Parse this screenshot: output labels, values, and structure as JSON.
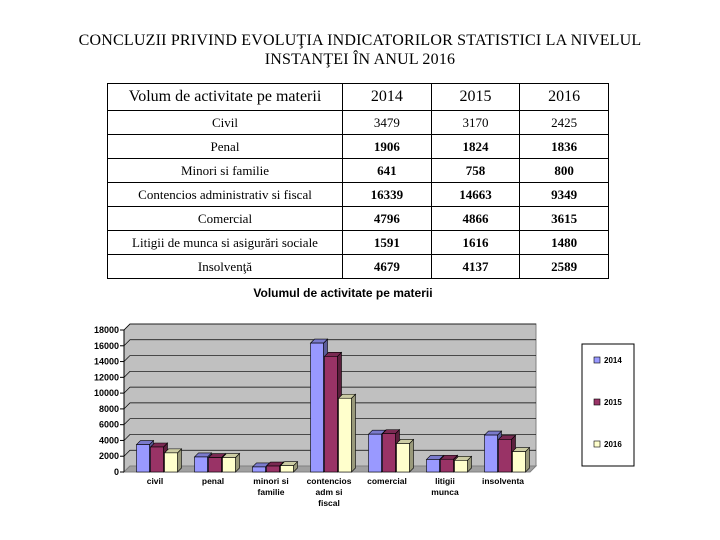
{
  "page": {
    "title_line1": "CONCLUZII PRIVIND EVOLUŢIA INDICATORILOR STATISTICI LA NIVELUL",
    "title_line2": "INSTANŢEI ÎN ANUL 2016"
  },
  "table": {
    "header": [
      "Volum de activitate pe materii",
      "2014",
      "2015",
      "2016"
    ],
    "rows": [
      {
        "label": "Civil",
        "v2014": "3479",
        "v2015": "3170",
        "v2016": "2425"
      },
      {
        "label": "Penal",
        "v2014": "1906",
        "v2015": "1824",
        "v2016": "1836"
      },
      {
        "label": "Minori si familie",
        "v2014": "641",
        "v2015": "758",
        "v2016": "800"
      },
      {
        "label": "Contencios administrativ si fiscal",
        "v2014": "16339",
        "v2015": "14663",
        "v2016": "9349"
      },
      {
        "label": "Comercial",
        "v2014": "4796",
        "v2015": "4866",
        "v2016": "3615"
      },
      {
        "label": "Litigii de munca si asigurări sociale",
        "v2014": "1591",
        "v2015": "1616",
        "v2016": "1480"
      },
      {
        "label": "Insolvenţă",
        "v2014": "4679",
        "v2015": "4137",
        "v2016": "2589"
      }
    ]
  },
  "chart_data": {
    "type": "bar",
    "title": "Volumul de activitate pe materii",
    "categories": [
      [
        "civil"
      ],
      [
        "penal"
      ],
      [
        "minori si",
        "familie"
      ],
      [
        "contencios",
        "adm si",
        "fiscal"
      ],
      [
        "comercial"
      ],
      [
        "litigii",
        "munca"
      ],
      [
        "insolventa"
      ]
    ],
    "series": [
      {
        "name": "2014",
        "color": "#9999FF",
        "values": [
          3479,
          1906,
          641,
          16339,
          4796,
          1591,
          4679
        ]
      },
      {
        "name": "2015",
        "color": "#993366",
        "values": [
          3170,
          1824,
          758,
          14663,
          4866,
          1616,
          4137
        ]
      },
      {
        "name": "2016",
        "color": "#FFFFCC",
        "values": [
          2425,
          1836,
          800,
          9349,
          3615,
          1480,
          2589
        ]
      }
    ],
    "ylim": [
      0,
      18000
    ],
    "yticks": [
      "0",
      "2000",
      "4000",
      "6000",
      "8000",
      "10000",
      "12000",
      "14000",
      "16000",
      "18000"
    ],
    "grid": true,
    "plot_background": "#C0C0C0",
    "legend_position": "right"
  }
}
